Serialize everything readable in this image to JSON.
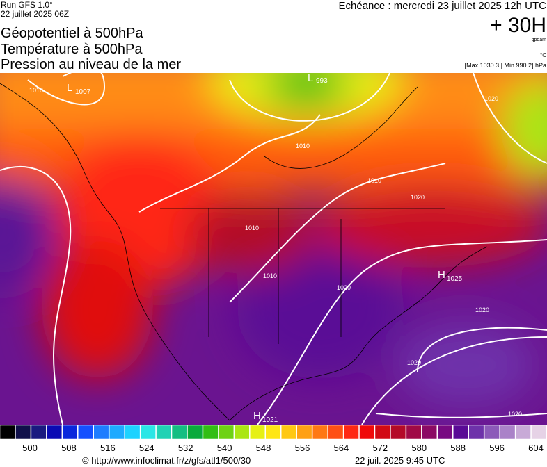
{
  "header": {
    "run": "Run GFS 1.0°",
    "run_date": "22 juillet 2025 06Z",
    "titles": [
      "Géopotentiel à 500hPa",
      "Température à 500hPa",
      "Pression au niveau de la mer"
    ],
    "valid": "Echéance : mercredi 23 juillet 2025 12h UTC",
    "lead": "+ 30H",
    "unit_geo": "gpdam",
    "unit_temp": "°C",
    "extremes": "[Max 1030.3 | Min 990.2] hPa"
  },
  "map": {
    "centers": [
      {
        "kind": "L",
        "value": "1007"
      },
      {
        "kind": "L",
        "value": "993"
      },
      {
        "kind": "H",
        "value": "1025"
      },
      {
        "kind": "H",
        "value": "1021"
      }
    ],
    "isobar_labels": [
      "1010",
      "1010",
      "1010",
      "1010",
      "1010",
      "1020",
      "1020",
      "1020",
      "1020",
      "1020",
      "1020"
    ]
  },
  "colorbar": {
    "labels": [
      "500",
      "508",
      "516",
      "524",
      "532",
      "540",
      "548",
      "556",
      "564",
      "572",
      "580",
      "588",
      "596",
      "604"
    ],
    "colors": [
      "#000000",
      "#10104a",
      "#1a1a80",
      "#0a0ab4",
      "#0a28dc",
      "#1450ff",
      "#1e7dff",
      "#1eaaff",
      "#1ed2ff",
      "#2be6e6",
      "#20d2b4",
      "#14be82",
      "#0aaa3c",
      "#32be14",
      "#6ed214",
      "#aae614",
      "#e6f014",
      "#ffe614",
      "#ffc814",
      "#ffa014",
      "#ff7814",
      "#ff5014",
      "#ff2814",
      "#f00a0a",
      "#d20a14",
      "#b40a28",
      "#a00a46",
      "#8c0a64",
      "#780a82",
      "#5a0a96",
      "#6e32aa",
      "#8c5ab9",
      "#aa82c8",
      "#c8aad7",
      "#e6d2e6"
    ]
  },
  "footer": {
    "source": "© http://www.infoclimat.fr/z/gfs/atl1/500/30",
    "stamp": "22 juil. 2025  9:45 UTC"
  }
}
